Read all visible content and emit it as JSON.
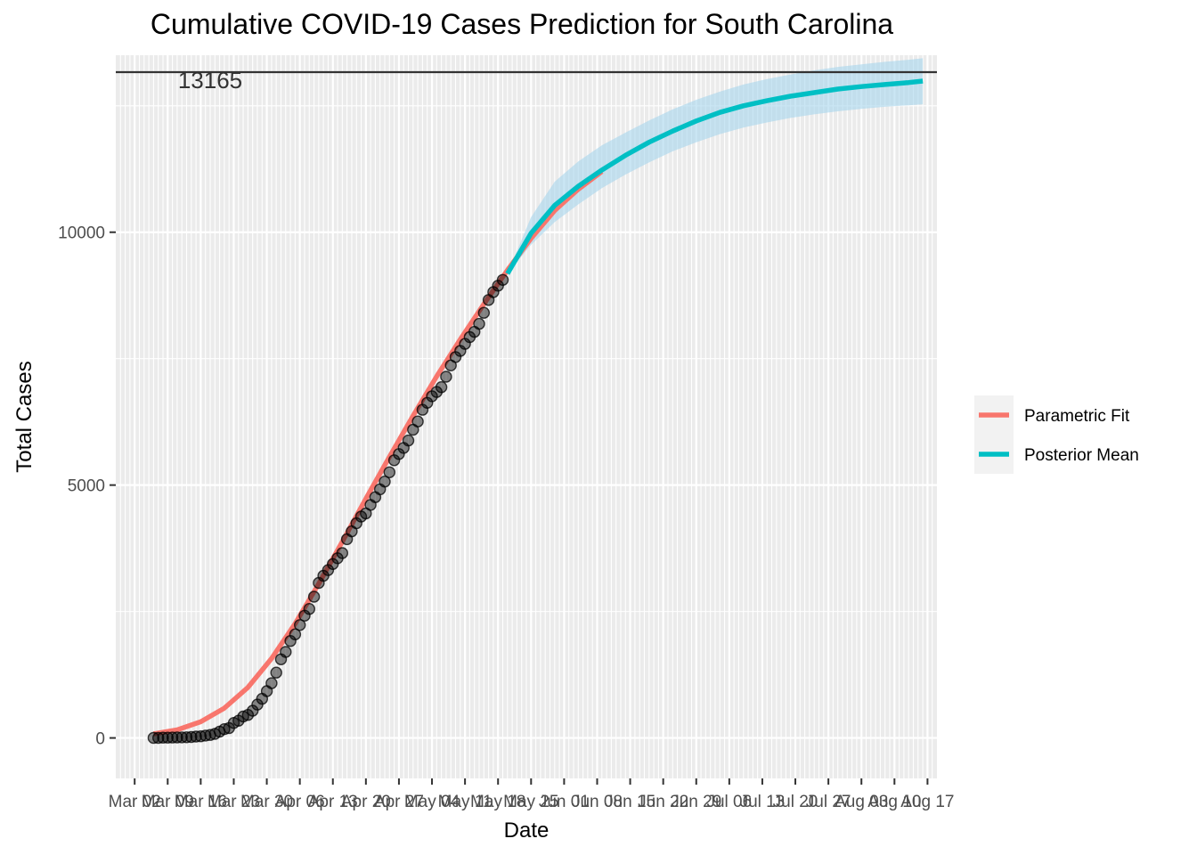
{
  "chart_data": {
    "type": "line",
    "title": "Cumulative COVID-19 Cases Prediction for South Carolina",
    "xlabel": "Date",
    "ylabel": "Total Cases",
    "x_axis": "date",
    "xlim": [
      "2020-02-27",
      "2020-08-19"
    ],
    "ylim": [
      -800,
      13500
    ],
    "grid": true,
    "legend_position": "right",
    "x_ticks": [
      {
        "date": "2020-03-02",
        "label": "Mar 02"
      },
      {
        "date": "2020-03-09",
        "label": "Mar 09"
      },
      {
        "date": "2020-03-16",
        "label": "Mar 16"
      },
      {
        "date": "2020-03-23",
        "label": "Mar 23"
      },
      {
        "date": "2020-03-30",
        "label": "Mar 30"
      },
      {
        "date": "2020-04-06",
        "label": "Apr 06"
      },
      {
        "date": "2020-04-13",
        "label": "Apr 13"
      },
      {
        "date": "2020-04-20",
        "label": "Apr 20"
      },
      {
        "date": "2020-04-27",
        "label": "Apr 27"
      },
      {
        "date": "2020-05-04",
        "label": "May 04"
      },
      {
        "date": "2020-05-11",
        "label": "May 11"
      },
      {
        "date": "2020-05-18",
        "label": "May 18"
      },
      {
        "date": "2020-05-25",
        "label": "May 25"
      },
      {
        "date": "2020-06-01",
        "label": "Jun 01"
      },
      {
        "date": "2020-06-08",
        "label": "Jun 08"
      },
      {
        "date": "2020-06-15",
        "label": "Jun 15"
      },
      {
        "date": "2020-06-22",
        "label": "Jun 22"
      },
      {
        "date": "2020-06-29",
        "label": "Jun 29"
      },
      {
        "date": "2020-07-06",
        "label": "Jul 06"
      },
      {
        "date": "2020-07-13",
        "label": "Jul 13"
      },
      {
        "date": "2020-07-20",
        "label": "Jul 20"
      },
      {
        "date": "2020-07-27",
        "label": "Jul 27"
      },
      {
        "date": "2020-08-03",
        "label": "Aug 03"
      },
      {
        "date": "2020-08-10",
        "label": "Aug 10"
      },
      {
        "date": "2020-08-17",
        "label": "Aug 17"
      }
    ],
    "y_ticks": [
      0,
      5000,
      10000
    ],
    "reference_line": {
      "y": 13165,
      "label": "13165",
      "color": "#333333"
    },
    "observed": {
      "color": "#000000",
      "points": [
        [
          "2020-03-06",
          1
        ],
        [
          "2020-03-07",
          2
        ],
        [
          "2020-03-08",
          6
        ],
        [
          "2020-03-09",
          7
        ],
        [
          "2020-03-10",
          9
        ],
        [
          "2020-03-11",
          10
        ],
        [
          "2020-03-12",
          12
        ],
        [
          "2020-03-13",
          13
        ],
        [
          "2020-03-14",
          19
        ],
        [
          "2020-03-15",
          28
        ],
        [
          "2020-03-16",
          33
        ],
        [
          "2020-03-17",
          47
        ],
        [
          "2020-03-18",
          60
        ],
        [
          "2020-03-19",
          81
        ],
        [
          "2020-03-20",
          125
        ],
        [
          "2020-03-21",
          173
        ],
        [
          "2020-03-22",
          195
        ],
        [
          "2020-03-23",
          298
        ],
        [
          "2020-03-24",
          342
        ],
        [
          "2020-03-25",
          424
        ],
        [
          "2020-03-26",
          456
        ],
        [
          "2020-03-27",
          539
        ],
        [
          "2020-03-28",
          660
        ],
        [
          "2020-03-29",
          774
        ],
        [
          "2020-03-30",
          925
        ],
        [
          "2020-03-31",
          1083
        ],
        [
          "2020-04-01",
          1293
        ],
        [
          "2020-04-02",
          1554
        ],
        [
          "2020-04-03",
          1700
        ],
        [
          "2020-04-04",
          1917
        ],
        [
          "2020-04-05",
          2049
        ],
        [
          "2020-04-06",
          2232
        ],
        [
          "2020-04-07",
          2417
        ],
        [
          "2020-04-08",
          2552
        ],
        [
          "2020-04-09",
          2792
        ],
        [
          "2020-04-10",
          3065
        ],
        [
          "2020-04-11",
          3207
        ],
        [
          "2020-04-12",
          3319
        ],
        [
          "2020-04-13",
          3439
        ],
        [
          "2020-04-14",
          3553
        ],
        [
          "2020-04-15",
          3656
        ],
        [
          "2020-04-16",
          3931
        ],
        [
          "2020-04-17",
          4086
        ],
        [
          "2020-04-18",
          4246
        ],
        [
          "2020-04-19",
          4377
        ],
        [
          "2020-04-20",
          4439
        ],
        [
          "2020-04-21",
          4608
        ],
        [
          "2020-04-22",
          4761
        ],
        [
          "2020-04-23",
          4917
        ],
        [
          "2020-04-24",
          5070
        ],
        [
          "2020-04-25",
          5253
        ],
        [
          "2020-04-26",
          5490
        ],
        [
          "2020-04-27",
          5613
        ],
        [
          "2020-04-28",
          5735
        ],
        [
          "2020-04-29",
          5881
        ],
        [
          "2020-04-30",
          6095
        ],
        [
          "2020-05-01",
          6258
        ],
        [
          "2020-05-02",
          6489
        ],
        [
          "2020-05-03",
          6626
        ],
        [
          "2020-05-04",
          6757
        ],
        [
          "2020-05-05",
          6841
        ],
        [
          "2020-05-06",
          6936
        ],
        [
          "2020-05-07",
          7142
        ],
        [
          "2020-05-08",
          7367
        ],
        [
          "2020-05-09",
          7531
        ],
        [
          "2020-05-10",
          7653
        ],
        [
          "2020-05-11",
          7792
        ],
        [
          "2020-05-12",
          7927
        ],
        [
          "2020-05-13",
          8030
        ],
        [
          "2020-05-14",
          8189
        ],
        [
          "2020-05-15",
          8407
        ],
        [
          "2020-05-16",
          8661
        ],
        [
          "2020-05-17",
          8816
        ],
        [
          "2020-05-18",
          8942
        ],
        [
          "2020-05-19",
          9056
        ]
      ]
    },
    "series": [
      {
        "name": "Parametric Fit",
        "color": "#F8766D",
        "points": [
          [
            "2020-03-06",
            80
          ],
          [
            "2020-03-11",
            160
          ],
          [
            "2020-03-16",
            320
          ],
          [
            "2020-03-21",
            590
          ],
          [
            "2020-03-26",
            1000
          ],
          [
            "2020-03-31",
            1570
          ],
          [
            "2020-04-05",
            2260
          ],
          [
            "2020-04-10",
            3050
          ],
          [
            "2020-04-15",
            3880
          ],
          [
            "2020-04-20",
            4730
          ],
          [
            "2020-04-25",
            5560
          ],
          [
            "2020-04-30",
            6370
          ],
          [
            "2020-05-05",
            7150
          ],
          [
            "2020-05-10",
            7880
          ],
          [
            "2020-05-15",
            8580
          ],
          [
            "2020-05-20",
            9250
          ],
          [
            "2020-05-25",
            9880
          ],
          [
            "2020-05-30",
            10430
          ],
          [
            "2020-06-04",
            10850
          ],
          [
            "2020-06-09",
            11200
          ]
        ]
      },
      {
        "name": "Posterior Mean",
        "color": "#00BFC4",
        "points": [
          [
            "2020-05-20",
            9180
          ],
          [
            "2020-05-25",
            9980
          ],
          [
            "2020-05-30",
            10530
          ],
          [
            "2020-06-04",
            10910
          ],
          [
            "2020-06-09",
            11230
          ],
          [
            "2020-06-14",
            11520
          ],
          [
            "2020-06-19",
            11780
          ],
          [
            "2020-06-24",
            12000
          ],
          [
            "2020-06-29",
            12200
          ],
          [
            "2020-07-04",
            12370
          ],
          [
            "2020-07-09",
            12500
          ],
          [
            "2020-07-14",
            12600
          ],
          [
            "2020-07-19",
            12690
          ],
          [
            "2020-07-24",
            12760
          ],
          [
            "2020-07-29",
            12830
          ],
          [
            "2020-08-03",
            12880
          ],
          [
            "2020-08-08",
            12920
          ],
          [
            "2020-08-13",
            12960
          ],
          [
            "2020-08-16",
            12990
          ]
        ]
      }
    ],
    "ribbon": {
      "color": "#A6D5EC",
      "points": [
        [
          "2020-05-20",
          9180,
          9180
        ],
        [
          "2020-05-25",
          9750,
          10300
        ],
        [
          "2020-05-30",
          10200,
          11000
        ],
        [
          "2020-06-04",
          10550,
          11400
        ],
        [
          "2020-06-09",
          10870,
          11720
        ],
        [
          "2020-06-14",
          11140,
          11970
        ],
        [
          "2020-06-19",
          11380,
          12210
        ],
        [
          "2020-06-24",
          11600,
          12430
        ],
        [
          "2020-06-29",
          11780,
          12620
        ],
        [
          "2020-07-04",
          11940,
          12780
        ],
        [
          "2020-07-09",
          12070,
          12920
        ],
        [
          "2020-07-14",
          12170,
          13030
        ],
        [
          "2020-07-19",
          12260,
          13120
        ],
        [
          "2020-07-24",
          12330,
          13200
        ],
        [
          "2020-07-29",
          12390,
          13270
        ],
        [
          "2020-08-03",
          12440,
          13320
        ],
        [
          "2020-08-08",
          12480,
          13370
        ],
        [
          "2020-08-13",
          12510,
          13410
        ],
        [
          "2020-08-16",
          12530,
          13440
        ]
      ]
    }
  }
}
